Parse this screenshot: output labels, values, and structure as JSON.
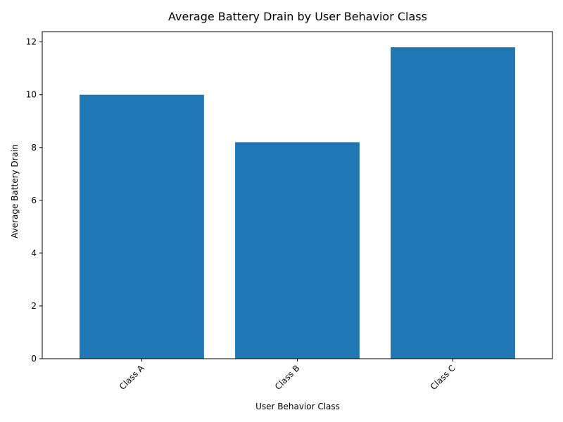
{
  "chart_data": {
    "type": "bar",
    "title": "Average Battery Drain by User Behavior Class",
    "xlabel": "User Behavior Class",
    "ylabel": "Average Battery Drain",
    "categories": [
      "Class A",
      "Class B",
      "Class C"
    ],
    "values": [
      10.0,
      8.2,
      11.8
    ],
    "ylim": [
      0,
      12.39
    ],
    "yticks": [
      0,
      2,
      4,
      6,
      8,
      10,
      12
    ],
    "bar_color": "#1f77b4",
    "grid": false,
    "legend": "none",
    "xtick_rotation_deg": 45
  }
}
